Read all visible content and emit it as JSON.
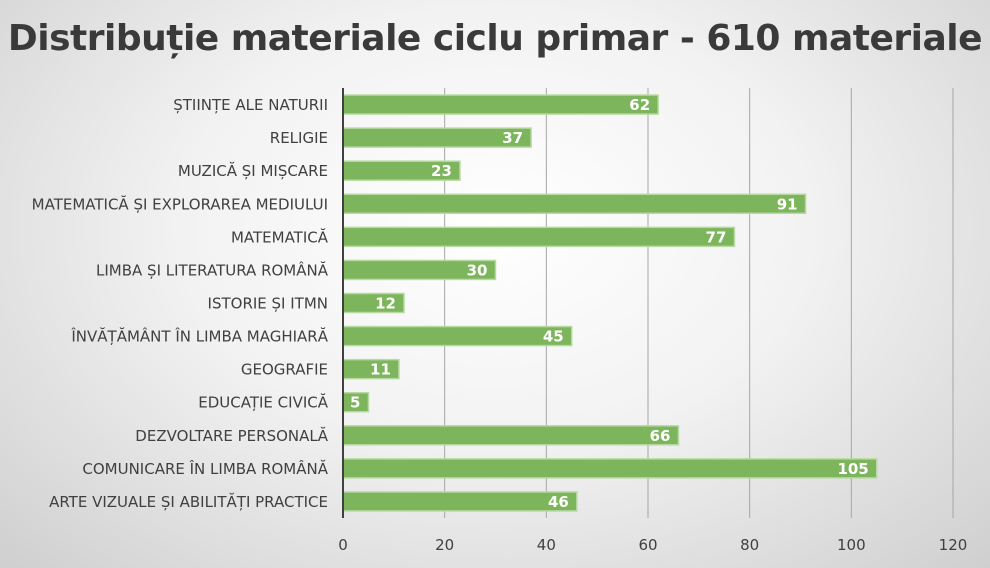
{
  "chart_data": {
    "type": "bar",
    "orientation": "horizontal",
    "title": "Distribuție materiale ciclu primar - 610 materiale",
    "categories": [
      "ȘTIINȚE ALE NATURII",
      "RELIGIE",
      "MUZICĂ ȘI MIȘCARE",
      "MATEMATICĂ ȘI EXPLORAREA MEDIULUI",
      "MATEMATICĂ",
      "LIMBA ȘI LITERATURA ROMÂNĂ",
      "ISTORIE ȘI ITMN",
      "ÎNVĂȚĂMÂNT ÎN LIMBA MAGHIARĂ",
      "GEOGRAFIE",
      "EDUCAȚIE CIVICĂ",
      "DEZVOLTARE PERSONALĂ",
      "COMUNICARE ÎN LIMBA ROMÂNĂ",
      "ARTE VIZUALE ȘI ABILITĂȚI PRACTICE"
    ],
    "values": [
      62,
      37,
      23,
      91,
      77,
      30,
      12,
      45,
      11,
      5,
      66,
      105,
      46
    ],
    "data_labels": [
      "62",
      "37",
      "23",
      "91",
      "77",
      "30",
      "12",
      "45",
      "11",
      "5",
      "66",
      "105",
      "46"
    ],
    "xlim": [
      0,
      120
    ],
    "x_ticks": [
      "0",
      "20",
      "40",
      "60",
      "80",
      "100",
      "120"
    ],
    "grid": true,
    "legend": "none",
    "colors": {
      "bar": "#7db55c",
      "bar_border": "#b8d9a2",
      "grid": "#a6a6a6",
      "axis": "#404040"
    }
  }
}
